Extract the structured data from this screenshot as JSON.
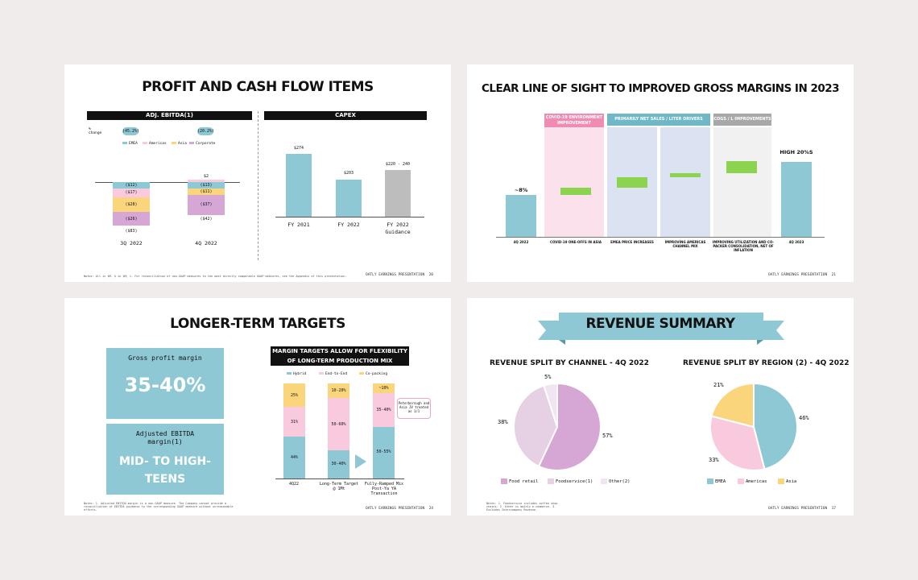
{
  "colors": {
    "blue": "#8ec8d4",
    "pink": "#f9c9dd",
    "yellow": "#fbd57b",
    "purple": "#d6a7d4",
    "lightpurple": "#e6d0e4",
    "grey": "#bdbdbd",
    "green": "#8cd44f",
    "teal_header": "#6fb8c8",
    "pink_header": "#f08cb4"
  },
  "slide1": {
    "title": "PROFIT AND CASH FLOW ITEMS",
    "ebitda": {
      "header": "ADJ. EBITDA(1)",
      "pct_label": "% change",
      "pct_values": [
        "(45.2%)",
        "(20.2%)"
      ],
      "legend": [
        "EMEA",
        "Americas",
        "Asia",
        "Corporate"
      ],
      "top_label_q4": "$2",
      "q3_segments": [
        "($12)",
        "($17)",
        "($28)",
        "($26)"
      ],
      "q3_total": "($83)",
      "q4_segments": [
        "($13)",
        "($11)",
        "($37)"
      ],
      "q4_total": "($42)",
      "categories": [
        "3Q 2022",
        "4Q 2022"
      ]
    },
    "capex": {
      "header": "CAPEX",
      "categories": [
        "FY 2021",
        "FY 2022",
        "FY 2022 Guidance"
      ],
      "labels": [
        "$274",
        "$203",
        "$220 - 240"
      ]
    },
    "footnote": "Notes: All in $M. $ in $M; 1. For reconciliation of non-GAAP measures to the most directly comparable GAAP measures, see the Appendix of this presentation.",
    "footer": "OATLY EARNINGS PRESENTATION",
    "page": "20"
  },
  "slide2": {
    "title": "CLEAR LINE OF SIGHT TO IMPROVED GROSS MARGINS IN 2023",
    "headers": [
      "COVID-19 ENVIRONMENT IMPROVEMENT",
      "PRIMARILY NET SALES / LITER DRIVERS",
      "COGS / L IMPROVEMENTS"
    ],
    "start_label": "~8%",
    "end_label": "HIGH 20%S",
    "xlabels": [
      "4Q 2022",
      "COVID-19 ONE-OFFS IN ASIA",
      "EMEA PRICE INCREASES",
      "IMPROVING AMERICAS CHANNEL MIX",
      "IMPROVING UTILIZATION AND CO-PACKER CONSOLIDATION, NET OF INFLATION",
      "4Q 2023"
    ],
    "footer": "OATLY EARNINGS PRESENTATION",
    "page": "21"
  },
  "slide3": {
    "title": "LONGER-TERM TARGETS",
    "gross_label": "Gross profit margin",
    "gross_value": "35-40%",
    "ebitda_label": "Adjusted EBITDA margin(1)",
    "ebitda_value": "MID- TO HIGH-TEENS",
    "chart_header": "MARGIN TARGETS ALLOW FOR FLEXIBILITY OF LONG-TERM PRODUCTION MIX",
    "legend": [
      "Hybrid",
      "End-to-End",
      "Co-packing"
    ],
    "bars": [
      {
        "name": "4Q22",
        "segments": [
          "44%",
          "31%",
          "25%"
        ]
      },
      {
        "name": "Long-Term Target @ 1Mt",
        "segments": [
          "30-40%",
          "50-60%",
          "10-20%"
        ]
      },
      {
        "name": "Fully-Ramped Mix Post-Ya YA Transaction",
        "segments": [
          "50-55%",
          "35-40%",
          "~10%"
        ]
      }
    ],
    "callout": "Peterborough and Asia JV treated as 1/1",
    "footnote": "Notes: 1. Adjusted EBITDA margin is a non-GAAP measure. The Company cannot provide a reconciliation of EBITDA guidance to the corresponding GAAP measure without unreasonable efforts.",
    "footer": "OATLY EARNINGS PRESENTATION",
    "page": "24"
  },
  "slide4": {
    "title": "REVENUE SUMMARY",
    "channel_title": "REVENUE SPLIT BY CHANNEL - 4Q 2022",
    "region_title": "REVENUE SPLIT BY REGION (2) - 4Q 2022",
    "channel_values": [
      "57%",
      "38%",
      "5%"
    ],
    "channel_legend": [
      "Food retail",
      "Foodservice(1)",
      "Other(2)"
    ],
    "region_values": [
      "46%",
      "33%",
      "21%"
    ],
    "region_legend": [
      "EMEA",
      "Americas",
      "Asia"
    ],
    "footnote": "Notes: 1. Foodservice includes coffee shop chains. 2. Other is mainly e-commerce. 3. Excludes Intercompany Revenue.",
    "footer": "OATLY EARNINGS PRESENTATION",
    "page": "17"
  },
  "chart_data": [
    {
      "type": "bar",
      "title": "ADJ. EBITDA",
      "categories": [
        "3Q 2022",
        "4Q 2022"
      ],
      "series": [
        {
          "name": "EMEA",
          "values": [
            -12,
            -13
          ]
        },
        {
          "name": "Americas",
          "values": [
            -17,
            2
          ]
        },
        {
          "name": "Asia",
          "values": [
            -28,
            -11
          ]
        },
        {
          "name": "Corporate",
          "values": [
            -26,
            -37
          ]
        }
      ],
      "totals": [
        -83,
        -42
      ]
    },
    {
      "type": "bar",
      "title": "CAPEX",
      "categories": [
        "FY 2021",
        "FY 2022",
        "FY 2022 Guidance"
      ],
      "values": [
        274,
        203,
        230
      ]
    },
    {
      "type": "bar",
      "title": "MARGIN TARGETS ALLOW FOR FLEXIBILITY OF LONG-TERM PRODUCTION MIX",
      "categories": [
        "4Q22",
        "Long-Term Target @ 1Mt",
        "Fully-Ramped Mix Post-Ya YA Transaction"
      ],
      "series": [
        {
          "name": "Hybrid",
          "values": [
            44,
            35,
            52.5
          ]
        },
        {
          "name": "End-to-End",
          "values": [
            31,
            55,
            37.5
          ]
        },
        {
          "name": "Co-packing",
          "values": [
            25,
            15,
            10
          ]
        }
      ]
    },
    {
      "type": "pie",
      "title": "REVENUE SPLIT BY CHANNEL - 4Q 2022",
      "categories": [
        "Food retail",
        "Foodservice",
        "Other"
      ],
      "values": [
        57,
        38,
        5
      ]
    },
    {
      "type": "pie",
      "title": "REVENUE SPLIT BY REGION - 4Q 2022",
      "categories": [
        "EMEA",
        "Americas",
        "Asia"
      ],
      "values": [
        46,
        33,
        21
      ]
    }
  ]
}
